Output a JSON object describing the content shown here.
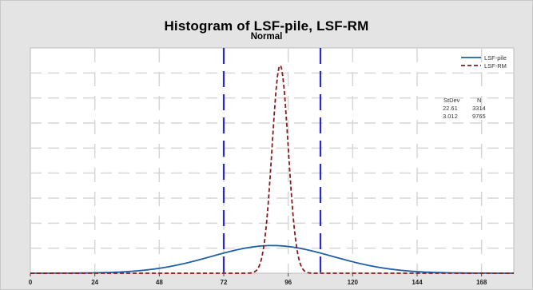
{
  "chart_data": {
    "type": "histogram",
    "title": "Histogram of LSF-pile, LSF-RM",
    "subtitle": "Normal",
    "xlim": [
      0,
      180
    ],
    "x_ticks": [
      0,
      24,
      48,
      72,
      96,
      120,
      144,
      168
    ],
    "x_tick_labels": [
      "0",
      "24",
      "48",
      "72",
      "96",
      "120",
      "144",
      "168"
    ],
    "reference_lines": [
      72,
      108
    ],
    "series": [
      {
        "name": "LSF-pile",
        "distribution": "normal",
        "mean": 90,
        "stdev": 22.61,
        "n": 3314,
        "color": "#1f5fa8",
        "dash": "solid"
      },
      {
        "name": "LSF-RM",
        "distribution": "normal",
        "mean": 93,
        "stdev": 3.012,
        "n": 9765,
        "color": "#8b1a1a",
        "dash": "dashed"
      }
    ],
    "stats_table": {
      "headers": [
        "StDev",
        "N"
      ],
      "rows": [
        [
          "22.61",
          "3314"
        ],
        [
          "3.012",
          "9765"
        ]
      ]
    },
    "legend": {
      "position": "top-right"
    },
    "grid": true,
    "colors": {
      "frame": "#e4e4e4",
      "plot": "#ffffff",
      "reference_line": "#2a2ad0",
      "grid": "#d6d6d6"
    }
  }
}
